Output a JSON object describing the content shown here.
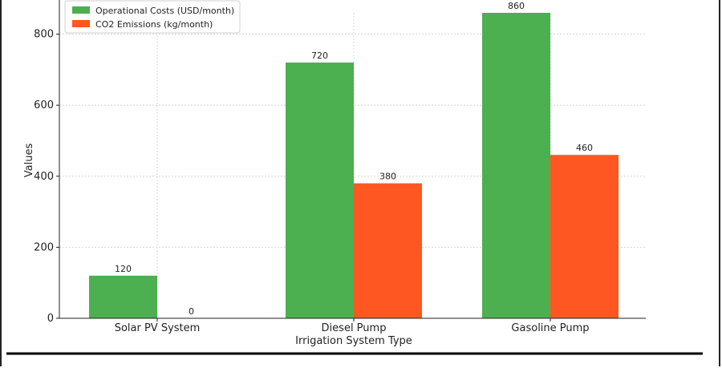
{
  "chart_data": {
    "type": "bar",
    "title": "",
    "xlabel": "Irrigation System Type",
    "ylabel": "Values",
    "categories": [
      "Solar PV System",
      "Diesel Pump",
      "Gasoline Pump"
    ],
    "series": [
      {
        "name": "Operational Costs (USD/month)",
        "values": [
          120,
          720,
          860
        ],
        "color": "#4CAF50"
      },
      {
        "name": "CO2 Emissions (kg/month)",
        "values": [
          0,
          380,
          460
        ],
        "color": "#FF5722"
      }
    ],
    "ylim": [
      0,
      860
    ],
    "yticks": [
      0,
      200,
      400,
      600,
      800
    ],
    "grid": true,
    "legend_position": "top-left"
  }
}
